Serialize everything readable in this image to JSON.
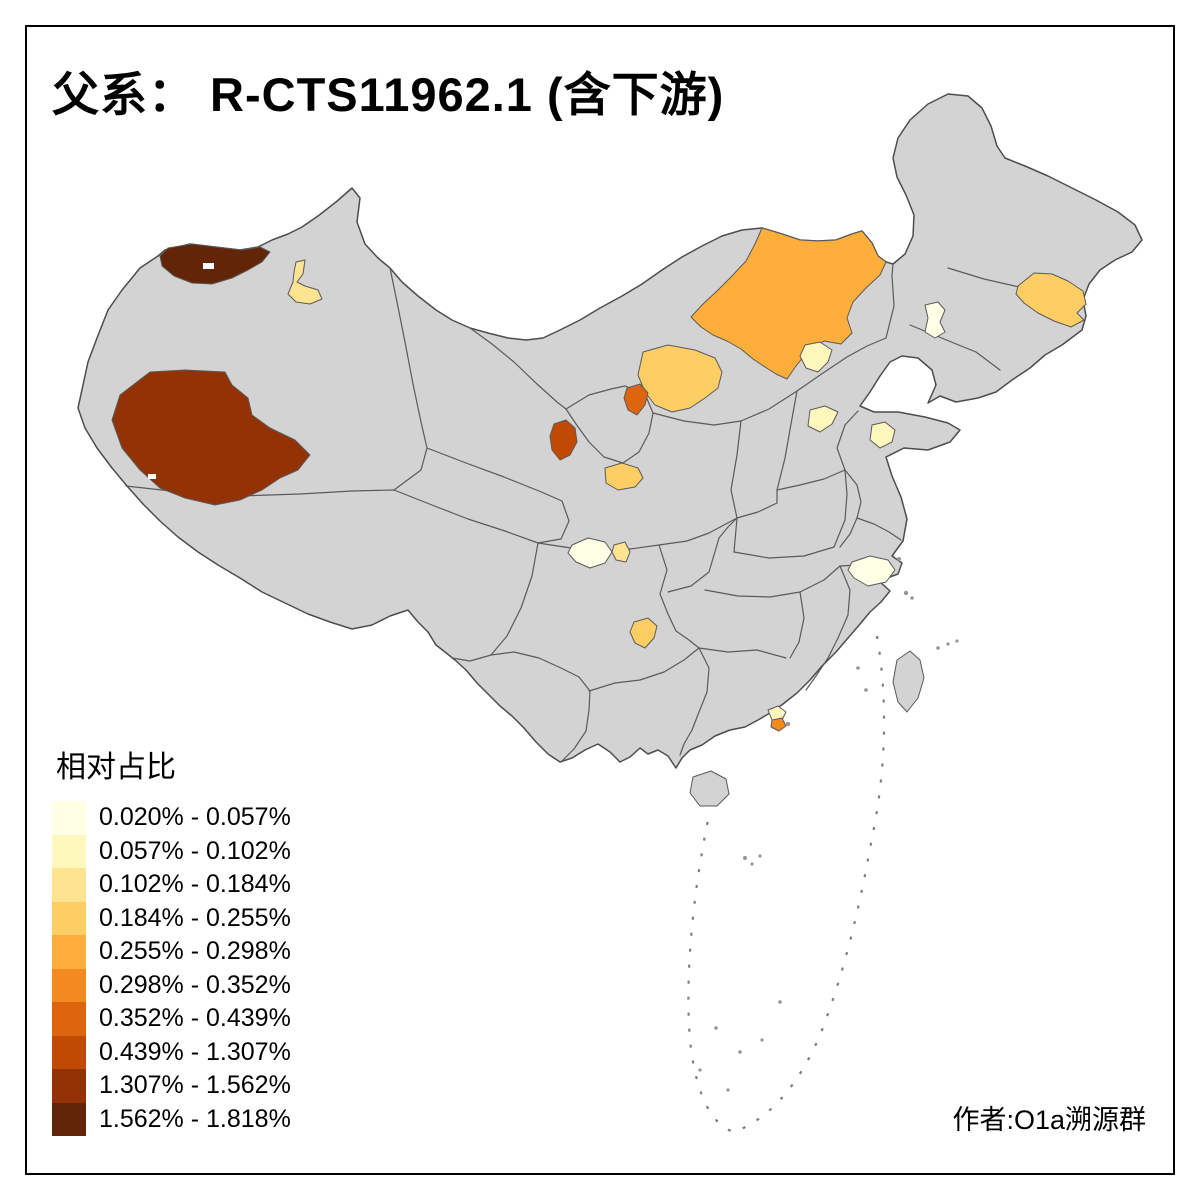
{
  "title": "父系： R-CTS11962.1 (含下游)",
  "attribution": "作者:O1a溯源群",
  "legend": {
    "title": "相对占比",
    "classes": [
      {
        "label": "0.020% - 0.057%",
        "color": "#FFFFE5"
      },
      {
        "label": "0.057% - 0.102%",
        "color": "#FFF7BC"
      },
      {
        "label": "0.102% - 0.184%",
        "color": "#FEE391"
      },
      {
        "label": "0.184% - 0.255%",
        "color": "#FECE65"
      },
      {
        "label": "0.255% - 0.298%",
        "color": "#FDAE3B"
      },
      {
        "label": "0.298% - 0.352%",
        "color": "#F28A20"
      },
      {
        "label": "0.352% - 0.439%",
        "color": "#DE650D"
      },
      {
        "label": "0.439% - 1.307%",
        "color": "#C14A02"
      },
      {
        "label": "1.307% - 1.562%",
        "color": "#933204"
      },
      {
        "label": "1.562% - 1.818%",
        "color": "#632508"
      }
    ]
  },
  "map": {
    "base_fill": "#D3D3D3",
    "border_color": "#5A5A5A",
    "background": "#FFFFFF",
    "regions": [
      {
        "id": "northwest-xinjiang-border",
        "bin": "1.562% - 1.818%",
        "color": "#632508"
      },
      {
        "id": "central-xinjiang",
        "bin": "0.102% - 0.184%",
        "color": "#FEE391"
      },
      {
        "id": "southwest-xinjiang",
        "bin": "1.307% - 1.562%",
        "color": "#933204"
      },
      {
        "id": "central-inner-mongolia",
        "bin": "0.255% - 0.298%",
        "color": "#FDAE3B"
      },
      {
        "id": "yellow-river-bend",
        "bin": "0.184% - 0.255%",
        "color": "#FECE65"
      },
      {
        "id": "north-ningxia",
        "bin": "0.352% - 0.439%",
        "color": "#DE650D"
      },
      {
        "id": "central-gansu",
        "bin": "0.439% - 1.307%",
        "color": "#C14A02"
      },
      {
        "id": "lanzhou-area",
        "bin": "0.184% - 0.255%",
        "color": "#FECE65"
      },
      {
        "id": "east-jilin",
        "bin": "0.184% - 0.255%",
        "color": "#FECE65"
      },
      {
        "id": "central-liaoning",
        "bin": "0.020% - 0.057%",
        "color": "#FFFFE5"
      },
      {
        "id": "beijing",
        "bin": "0.057% - 0.102%",
        "color": "#FFF7BC"
      },
      {
        "id": "west-shandong",
        "bin": "0.057% - 0.102%",
        "color": "#FFF7BC"
      },
      {
        "id": "east-shandong",
        "bin": "0.057% - 0.102%",
        "color": "#FFF7BC"
      },
      {
        "id": "chengdu-area",
        "bin": "0.020% - 0.057%",
        "color": "#FFFFE5"
      },
      {
        "id": "east-of-chengdu",
        "bin": "0.102% - 0.184%",
        "color": "#FEE391"
      },
      {
        "id": "north-guizhou",
        "bin": "0.184% - 0.255%",
        "color": "#FECE65"
      },
      {
        "id": "north-zhejiang",
        "bin": "0.020% - 0.057%",
        "color": "#FFFFE5"
      },
      {
        "id": "pearl-delta-west",
        "bin": "0.057% - 0.102%",
        "color": "#FFF7BC"
      },
      {
        "id": "pearl-delta-east",
        "bin": "0.298% - 0.352%",
        "color": "#F28A20"
      }
    ]
  },
  "chart_data": {
    "type": "choropleth",
    "title": "父系： R-CTS11962.1 (含下游)",
    "legend_title": "相对占比",
    "legend_position": "bottom-left",
    "bins": [
      "0.020% - 0.057%",
      "0.057% - 0.102%",
      "0.102% - 0.184%",
      "0.184% - 0.255%",
      "0.255% - 0.298%",
      "0.298% - 0.352%",
      "0.352% - 0.439%",
      "0.439% - 1.307%",
      "1.307% - 1.562%",
      "1.562% - 1.818%"
    ],
    "palette": [
      "#FFFFE5",
      "#FFF7BC",
      "#FEE391",
      "#FECE65",
      "#FDAE3B",
      "#F28A20",
      "#DE650D",
      "#C14A02",
      "#933204",
      "#632508"
    ],
    "no_data_fill": "#D3D3D3",
    "highlighted_region_count": 19
  }
}
